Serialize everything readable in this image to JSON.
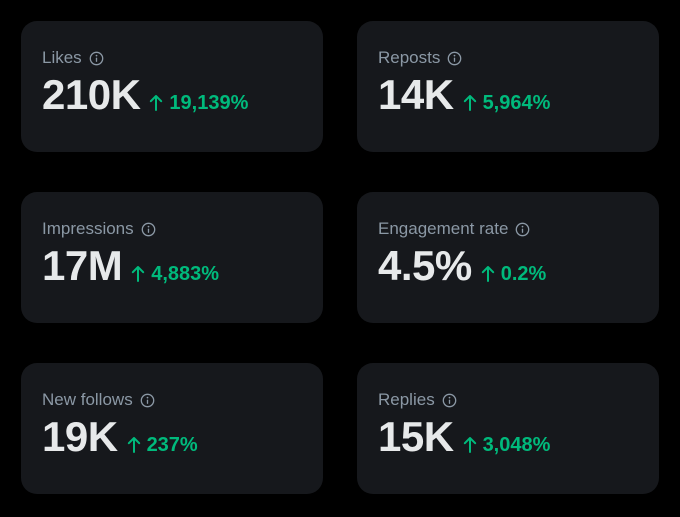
{
  "colors": {
    "background": "#000000",
    "card": "#16181c",
    "label": "#8b98a5",
    "value": "#e7e9ea",
    "positive_change": "#00ba7c"
  },
  "icons": {
    "info": "info-circle-icon",
    "trend": "arrow-up-icon"
  },
  "metrics": [
    {
      "label": "Likes",
      "value": "210K",
      "change": "19,139%"
    },
    {
      "label": "Reposts",
      "value": "14K",
      "change": "5,964%"
    },
    {
      "label": "Impressions",
      "value": "17M",
      "change": "4,883%"
    },
    {
      "label": "Engagement rate",
      "value": "4.5%",
      "change": "0.2%"
    },
    {
      "label": "New follows",
      "value": "19K",
      "change": "237%"
    },
    {
      "label": "Replies",
      "value": "15K",
      "change": "3,048%"
    }
  ]
}
